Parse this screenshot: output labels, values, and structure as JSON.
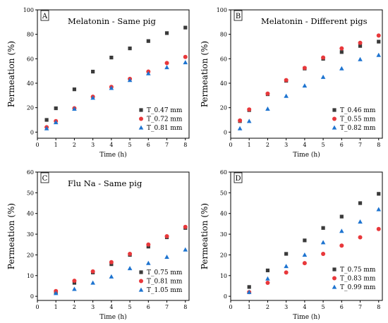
{
  "chart_data": [
    {
      "type": "scatter",
      "letter": "A",
      "title": "Melatonin - Same pig",
      "xlabel": "Time (h)",
      "ylabel": "Permeation (%)",
      "xlim": [
        0,
        8.2
      ],
      "ylim": [
        -5,
        100
      ],
      "xticks": [
        0,
        1,
        2,
        3,
        4,
        5,
        6,
        7,
        8
      ],
      "yticks": [
        0,
        20,
        40,
        60,
        80,
        100
      ],
      "legend": "bottom-right",
      "grid": false,
      "series": [
        {
          "name": "T_0.47 mm",
          "marker": "square",
          "color": "#3a3a3a",
          "x": [
            0.5,
            1,
            2,
            3,
            4,
            5,
            6,
            7,
            8
          ],
          "y": [
            10,
            19.5,
            35,
            49.5,
            61,
            68.5,
            74.5,
            81,
            85.5
          ]
        },
        {
          "name": "T_0.72 mm",
          "marker": "circle",
          "color": "#e8383b",
          "x": [
            0.5,
            1,
            2,
            3,
            4,
            5,
            6,
            7,
            8
          ],
          "y": [
            4,
            9,
            19.5,
            29,
            37,
            43.5,
            49.5,
            56.5,
            61.5
          ]
        },
        {
          "name": "T_0.81 mm",
          "marker": "triangle",
          "color": "#1e74d0",
          "x": [
            0.5,
            1,
            2,
            3,
            4,
            5,
            6,
            7,
            8
          ],
          "y": [
            3,
            8,
            19,
            28,
            36,
            42.5,
            48,
            53,
            57
          ]
        }
      ]
    },
    {
      "type": "scatter",
      "letter": "B",
      "title": "Melatonin - Different pigs",
      "xlabel": "Time (h)",
      "ylabel": "Permeation (%)",
      "xlim": [
        0,
        8.2
      ],
      "ylim": [
        -5,
        100
      ],
      "xticks": [
        0,
        1,
        2,
        3,
        4,
        5,
        6,
        7,
        8
      ],
      "yticks": [
        0,
        20,
        40,
        60,
        80,
        100
      ],
      "legend": "bottom-right",
      "grid": false,
      "series": [
        {
          "name": "T_0.46 mm",
          "marker": "square",
          "color": "#3a3a3a",
          "x": [
            0.5,
            1,
            2,
            3,
            4,
            5,
            6,
            7,
            8
          ],
          "y": [
            9,
            18,
            31,
            42,
            52,
            60,
            65.5,
            70.5,
            74
          ]
        },
        {
          "name": "T_0.55 mm",
          "marker": "circle",
          "color": "#e8383b",
          "x": [
            0.5,
            1,
            2,
            3,
            4,
            5,
            6,
            7,
            8
          ],
          "y": [
            9.5,
            18.5,
            31.5,
            42.5,
            52.5,
            61,
            68.5,
            73,
            79
          ]
        },
        {
          "name": "T_0.82 mm",
          "marker": "triangle",
          "color": "#1e74d0",
          "x": [
            0.5,
            1,
            2,
            3,
            4,
            5,
            6,
            7,
            8
          ],
          "y": [
            3,
            9,
            19,
            29.5,
            38,
            45,
            52,
            59.5,
            63
          ]
        }
      ]
    },
    {
      "type": "scatter",
      "letter": "C",
      "title": "Flu Na - Same pig",
      "xlabel": "Time (h)",
      "ylabel": "Permeation (%)",
      "xlim": [
        0,
        8.2
      ],
      "ylim": [
        -2,
        60
      ],
      "xticks": [
        0,
        1,
        2,
        3,
        4,
        5,
        6,
        7,
        8
      ],
      "yticks": [
        0,
        10,
        20,
        30,
        40,
        50,
        60
      ],
      "legend": "bottom-right",
      "grid": false,
      "series": [
        {
          "name": "T_0.75 mm",
          "marker": "square",
          "color": "#3a3a3a",
          "x": [
            1,
            2,
            3,
            4,
            5,
            6,
            7,
            8
          ],
          "y": [
            2,
            6.5,
            11.5,
            15.5,
            20,
            24,
            28.5,
            33
          ]
        },
        {
          "name": "T_0.81 mm",
          "marker": "circle",
          "color": "#e8383b",
          "x": [
            1,
            2,
            3,
            4,
            5,
            6,
            7,
            8
          ],
          "y": [
            2.5,
            7.5,
            12,
            16.5,
            20.5,
            25,
            29,
            33.5
          ]
        },
        {
          "name": "T_1.05 mm",
          "marker": "triangle",
          "color": "#1e74d0",
          "x": [
            1,
            2,
            3,
            4,
            5,
            6,
            7,
            8
          ],
          "y": [
            1.5,
            3.5,
            6.5,
            9.5,
            13.5,
            16,
            19,
            22.5
          ]
        }
      ]
    },
    {
      "type": "scatter",
      "letter": "D",
      "title": "",
      "xlabel": "Time (h)",
      "ylabel": "Permeation (%)",
      "xlim": [
        0,
        8.2
      ],
      "ylim": [
        -2,
        60
      ],
      "xticks": [
        0,
        1,
        2,
        3,
        4,
        5,
        6,
        7,
        8
      ],
      "yticks": [
        0,
        10,
        20,
        30,
        40,
        50,
        60
      ],
      "legend": "bottom-right",
      "grid": false,
      "series": [
        {
          "name": "T_0.75 mm",
          "marker": "square",
          "color": "#3a3a3a",
          "x": [
            1,
            2,
            3,
            4,
            5,
            6,
            7,
            8
          ],
          "y": [
            4.5,
            12.5,
            20.5,
            27,
            33,
            38.5,
            45,
            49.5
          ]
        },
        {
          "name": "T_0.83 mm",
          "marker": "circle",
          "color": "#e8383b",
          "x": [
            1,
            2,
            3,
            4,
            5,
            6,
            7,
            8
          ],
          "y": [
            2,
            6.5,
            11.5,
            16,
            20.5,
            24.5,
            28.5,
            32.5
          ]
        },
        {
          "name": "T_0.99 mm",
          "marker": "triangle",
          "color": "#1e74d0",
          "x": [
            1,
            2,
            3,
            4,
            5,
            6,
            7,
            8
          ],
          "y": [
            2,
            8.5,
            14.5,
            20,
            26,
            31.5,
            36,
            42
          ]
        }
      ]
    }
  ]
}
